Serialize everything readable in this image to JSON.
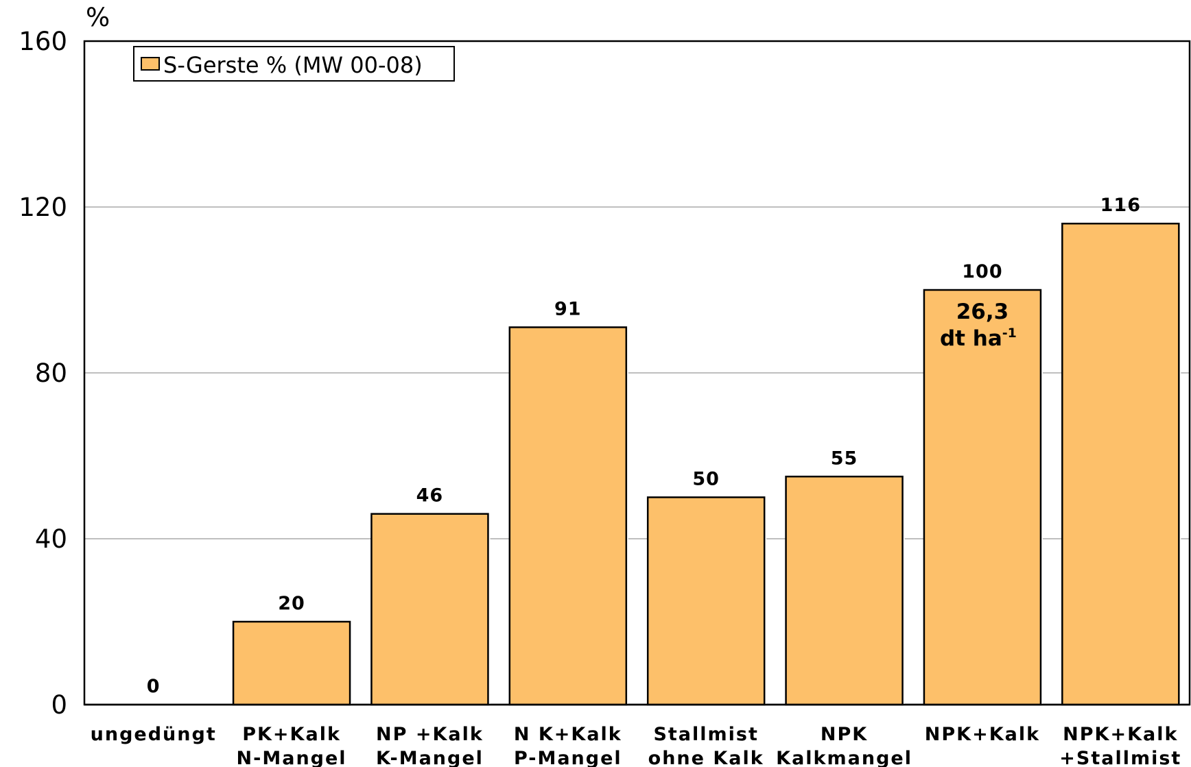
{
  "chart_data": {
    "type": "bar",
    "yunit": "%",
    "ylim": [
      0,
      160
    ],
    "yticks": [
      0,
      40,
      80,
      120,
      160
    ],
    "grid": true,
    "legend_position": "top-left",
    "categories": [
      [
        "ungedüngt"
      ],
      [
        "PK+Kalk",
        "N-Mangel"
      ],
      [
        "NP +Kalk",
        "K-Mangel"
      ],
      [
        "N K+Kalk",
        "P-Mangel"
      ],
      [
        "Stallmist",
        "ohne Kalk"
      ],
      [
        "NPK",
        "Kalkmangel"
      ],
      [
        "NPK+Kalk"
      ],
      [
        "NPK+Kalk",
        "+Stallmist"
      ]
    ],
    "series": [
      {
        "name": "S-Gerste % (MW 00-08)",
        "color": "#FDC06A",
        "values": [
          0,
          20,
          46,
          91,
          50,
          55,
          100,
          116
        ]
      }
    ],
    "annotation": {
      "category_index": 6,
      "line1": "26,3",
      "line2": "dt ha",
      "superscript": "-1"
    }
  }
}
